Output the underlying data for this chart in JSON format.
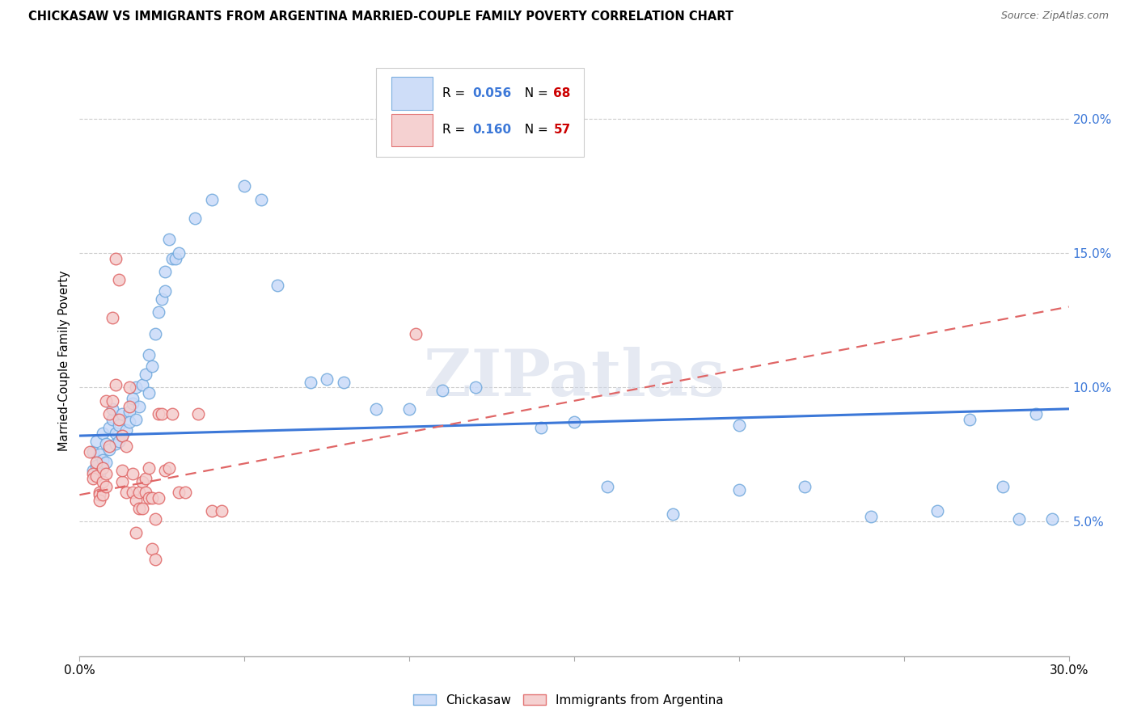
{
  "title": "CHICKASAW VS IMMIGRANTS FROM ARGENTINA MARRIED-COUPLE FAMILY POVERTY CORRELATION CHART",
  "source": "Source: ZipAtlas.com",
  "ylabel": "Married-Couple Family Poverty",
  "xlim": [
    0.0,
    0.3
  ],
  "ylim": [
    0.0,
    0.22
  ],
  "xticks": [
    0.0,
    0.05,
    0.1,
    0.15,
    0.2,
    0.25,
    0.3
  ],
  "yticks_right": [
    0.05,
    0.1,
    0.15,
    0.2
  ],
  "ytick_labels_right": [
    "5.0%",
    "10.0%",
    "15.0%",
    "20.0%"
  ],
  "watermark": "ZIPatlas",
  "blue_color": "#c9daf8",
  "blue_edge_color": "#6fa8dc",
  "pink_color": "#f4cccc",
  "pink_edge_color": "#e06666",
  "blue_line_color": "#3c78d8",
  "pink_line_color": "#cc4125",
  "r1": "0.056",
  "n1": "68",
  "r2": "0.160",
  "n2": "57",
  "blue_scatter": [
    [
      0.004,
      0.076
    ],
    [
      0.004,
      0.069
    ],
    [
      0.005,
      0.071
    ],
    [
      0.005,
      0.08
    ],
    [
      0.006,
      0.075
    ],
    [
      0.006,
      0.068
    ],
    [
      0.007,
      0.073
    ],
    [
      0.007,
      0.083
    ],
    [
      0.008,
      0.079
    ],
    [
      0.008,
      0.072
    ],
    [
      0.009,
      0.077
    ],
    [
      0.009,
      0.085
    ],
    [
      0.01,
      0.088
    ],
    [
      0.01,
      0.092
    ],
    [
      0.011,
      0.079
    ],
    [
      0.011,
      0.083
    ],
    [
      0.012,
      0.086
    ],
    [
      0.012,
      0.08
    ],
    [
      0.013,
      0.082
    ],
    [
      0.013,
      0.09
    ],
    [
      0.014,
      0.084
    ],
    [
      0.015,
      0.091
    ],
    [
      0.015,
      0.087
    ],
    [
      0.016,
      0.094
    ],
    [
      0.016,
      0.096
    ],
    [
      0.017,
      0.1
    ],
    [
      0.017,
      0.088
    ],
    [
      0.018,
      0.093
    ],
    [
      0.019,
      0.101
    ],
    [
      0.02,
      0.105
    ],
    [
      0.021,
      0.112
    ],
    [
      0.021,
      0.098
    ],
    [
      0.022,
      0.108
    ],
    [
      0.023,
      0.12
    ],
    [
      0.024,
      0.128
    ],
    [
      0.025,
      0.133
    ],
    [
      0.026,
      0.143
    ],
    [
      0.026,
      0.136
    ],
    [
      0.027,
      0.155
    ],
    [
      0.028,
      0.148
    ],
    [
      0.029,
      0.148
    ],
    [
      0.03,
      0.15
    ],
    [
      0.035,
      0.163
    ],
    [
      0.04,
      0.17
    ],
    [
      0.05,
      0.175
    ],
    [
      0.055,
      0.17
    ],
    [
      0.06,
      0.138
    ],
    [
      0.07,
      0.102
    ],
    [
      0.075,
      0.103
    ],
    [
      0.08,
      0.102
    ],
    [
      0.09,
      0.092
    ],
    [
      0.1,
      0.092
    ],
    [
      0.11,
      0.099
    ],
    [
      0.12,
      0.1
    ],
    [
      0.14,
      0.085
    ],
    [
      0.15,
      0.087
    ],
    [
      0.16,
      0.063
    ],
    [
      0.18,
      0.053
    ],
    [
      0.2,
      0.086
    ],
    [
      0.2,
      0.062
    ],
    [
      0.22,
      0.063
    ],
    [
      0.24,
      0.052
    ],
    [
      0.26,
      0.054
    ],
    [
      0.27,
      0.088
    ],
    [
      0.28,
      0.063
    ],
    [
      0.285,
      0.051
    ],
    [
      0.29,
      0.09
    ],
    [
      0.295,
      0.051
    ]
  ],
  "pink_scatter": [
    [
      0.003,
      0.076
    ],
    [
      0.004,
      0.068
    ],
    [
      0.004,
      0.066
    ],
    [
      0.005,
      0.072
    ],
    [
      0.005,
      0.067
    ],
    [
      0.006,
      0.061
    ],
    [
      0.006,
      0.06
    ],
    [
      0.006,
      0.058
    ],
    [
      0.007,
      0.07
    ],
    [
      0.007,
      0.065
    ],
    [
      0.007,
      0.06
    ],
    [
      0.008,
      0.068
    ],
    [
      0.008,
      0.063
    ],
    [
      0.008,
      0.095
    ],
    [
      0.009,
      0.078
    ],
    [
      0.009,
      0.09
    ],
    [
      0.01,
      0.095
    ],
    [
      0.01,
      0.126
    ],
    [
      0.011,
      0.101
    ],
    [
      0.011,
      0.148
    ],
    [
      0.012,
      0.14
    ],
    [
      0.012,
      0.088
    ],
    [
      0.013,
      0.082
    ],
    [
      0.013,
      0.065
    ],
    [
      0.013,
      0.069
    ],
    [
      0.014,
      0.078
    ],
    [
      0.014,
      0.061
    ],
    [
      0.015,
      0.1
    ],
    [
      0.015,
      0.093
    ],
    [
      0.016,
      0.068
    ],
    [
      0.016,
      0.061
    ],
    [
      0.017,
      0.058
    ],
    [
      0.017,
      0.046
    ],
    [
      0.018,
      0.055
    ],
    [
      0.018,
      0.061
    ],
    [
      0.019,
      0.065
    ],
    [
      0.019,
      0.055
    ],
    [
      0.02,
      0.061
    ],
    [
      0.02,
      0.066
    ],
    [
      0.021,
      0.07
    ],
    [
      0.021,
      0.059
    ],
    [
      0.022,
      0.059
    ],
    [
      0.022,
      0.04
    ],
    [
      0.023,
      0.036
    ],
    [
      0.023,
      0.051
    ],
    [
      0.024,
      0.059
    ],
    [
      0.024,
      0.09
    ],
    [
      0.025,
      0.09
    ],
    [
      0.026,
      0.069
    ],
    [
      0.027,
      0.07
    ],
    [
      0.028,
      0.09
    ],
    [
      0.03,
      0.061
    ],
    [
      0.032,
      0.061
    ],
    [
      0.036,
      0.09
    ],
    [
      0.04,
      0.054
    ],
    [
      0.043,
      0.054
    ],
    [
      0.102,
      0.12
    ]
  ],
  "blue_line": [
    [
      0.0,
      0.082
    ],
    [
      0.3,
      0.092
    ]
  ],
  "pink_line": [
    [
      0.0,
      0.06
    ],
    [
      0.3,
      0.13
    ]
  ]
}
